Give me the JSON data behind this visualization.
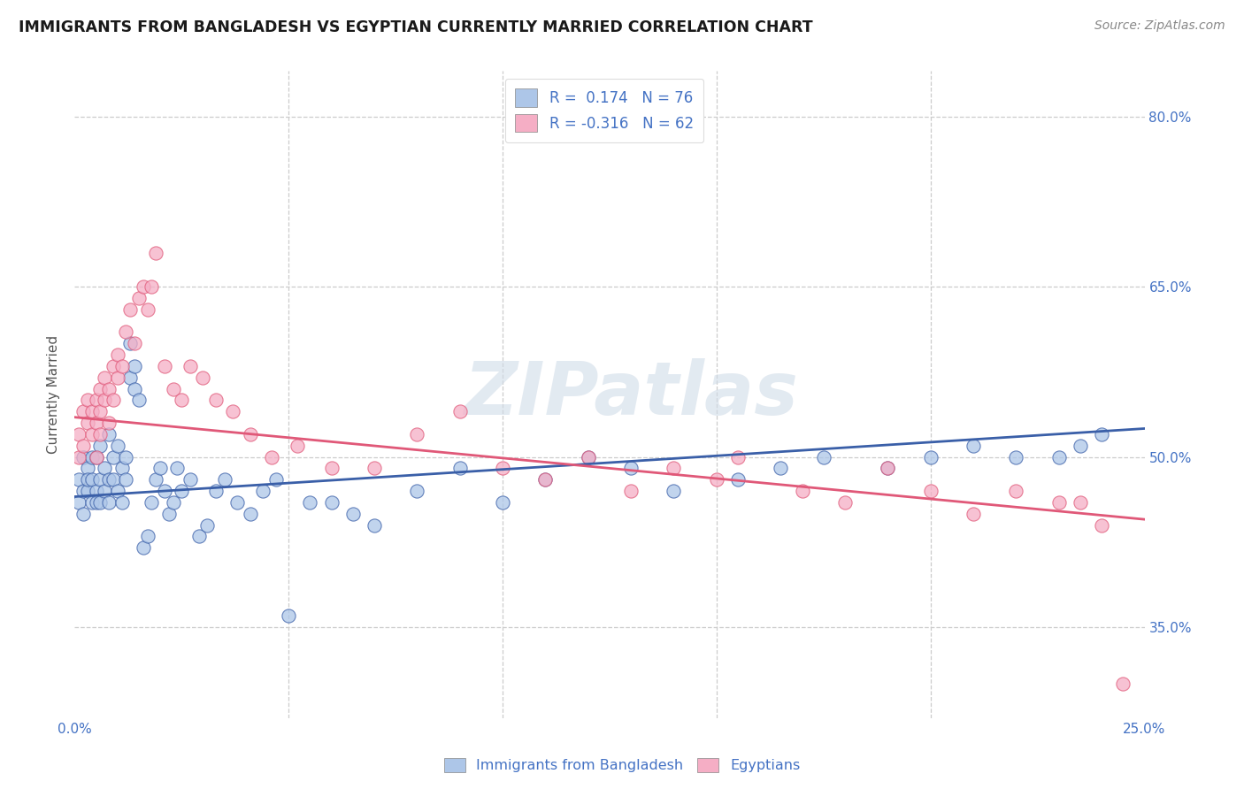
{
  "title": "IMMIGRANTS FROM BANGLADESH VS EGYPTIAN CURRENTLY MARRIED CORRELATION CHART",
  "source": "Source: ZipAtlas.com",
  "ylabel": "Currently Married",
  "xmin": 0.0,
  "xmax": 0.25,
  "ymin": 0.27,
  "ymax": 0.84,
  "legend_r1": "R =  0.174   N = 76",
  "legend_r2": "R = -0.316   N = 62",
  "color_bangladesh": "#adc6e8",
  "color_egypt": "#f5aec5",
  "line_color_bangladesh": "#3a5fa8",
  "line_color_egypt": "#e05878",
  "watermark": "ZIPatlas",
  "bangladesh_x": [
    0.001,
    0.001,
    0.002,
    0.002,
    0.002,
    0.003,
    0.003,
    0.003,
    0.004,
    0.004,
    0.004,
    0.005,
    0.005,
    0.005,
    0.006,
    0.006,
    0.006,
    0.007,
    0.007,
    0.008,
    0.008,
    0.008,
    0.009,
    0.009,
    0.01,
    0.01,
    0.011,
    0.011,
    0.012,
    0.012,
    0.013,
    0.013,
    0.014,
    0.014,
    0.015,
    0.016,
    0.017,
    0.018,
    0.019,
    0.02,
    0.021,
    0.022,
    0.023,
    0.024,
    0.025,
    0.027,
    0.029,
    0.031,
    0.033,
    0.035,
    0.038,
    0.041,
    0.044,
    0.047,
    0.05,
    0.055,
    0.06,
    0.065,
    0.07,
    0.08,
    0.09,
    0.1,
    0.11,
    0.12,
    0.13,
    0.14,
    0.155,
    0.165,
    0.175,
    0.19,
    0.2,
    0.21,
    0.22,
    0.23,
    0.235,
    0.24
  ],
  "bangladesh_y": [
    0.48,
    0.46,
    0.47,
    0.5,
    0.45,
    0.49,
    0.47,
    0.48,
    0.46,
    0.5,
    0.48,
    0.47,
    0.5,
    0.46,
    0.48,
    0.46,
    0.51,
    0.47,
    0.49,
    0.48,
    0.52,
    0.46,
    0.5,
    0.48,
    0.47,
    0.51,
    0.49,
    0.46,
    0.5,
    0.48,
    0.57,
    0.6,
    0.58,
    0.56,
    0.55,
    0.42,
    0.43,
    0.46,
    0.48,
    0.49,
    0.47,
    0.45,
    0.46,
    0.49,
    0.47,
    0.48,
    0.43,
    0.44,
    0.47,
    0.48,
    0.46,
    0.45,
    0.47,
    0.48,
    0.36,
    0.46,
    0.46,
    0.45,
    0.44,
    0.47,
    0.49,
    0.46,
    0.48,
    0.5,
    0.49,
    0.47,
    0.48,
    0.49,
    0.5,
    0.49,
    0.5,
    0.51,
    0.5,
    0.5,
    0.51,
    0.52
  ],
  "egypt_x": [
    0.001,
    0.001,
    0.002,
    0.002,
    0.003,
    0.003,
    0.004,
    0.004,
    0.005,
    0.005,
    0.005,
    0.006,
    0.006,
    0.006,
    0.007,
    0.007,
    0.008,
    0.008,
    0.009,
    0.009,
    0.01,
    0.01,
    0.011,
    0.012,
    0.013,
    0.014,
    0.015,
    0.016,
    0.017,
    0.018,
    0.019,
    0.021,
    0.023,
    0.025,
    0.027,
    0.03,
    0.033,
    0.037,
    0.041,
    0.046,
    0.052,
    0.06,
    0.07,
    0.08,
    0.09,
    0.1,
    0.11,
    0.12,
    0.13,
    0.14,
    0.15,
    0.155,
    0.17,
    0.18,
    0.19,
    0.2,
    0.21,
    0.22,
    0.23,
    0.235,
    0.24,
    0.245
  ],
  "egypt_y": [
    0.52,
    0.5,
    0.54,
    0.51,
    0.53,
    0.55,
    0.52,
    0.54,
    0.5,
    0.53,
    0.55,
    0.52,
    0.54,
    0.56,
    0.55,
    0.57,
    0.53,
    0.56,
    0.58,
    0.55,
    0.57,
    0.59,
    0.58,
    0.61,
    0.63,
    0.6,
    0.64,
    0.65,
    0.63,
    0.65,
    0.68,
    0.58,
    0.56,
    0.55,
    0.58,
    0.57,
    0.55,
    0.54,
    0.52,
    0.5,
    0.51,
    0.49,
    0.49,
    0.52,
    0.54,
    0.49,
    0.48,
    0.5,
    0.47,
    0.49,
    0.48,
    0.5,
    0.47,
    0.46,
    0.49,
    0.47,
    0.45,
    0.47,
    0.46,
    0.46,
    0.44,
    0.3
  ]
}
